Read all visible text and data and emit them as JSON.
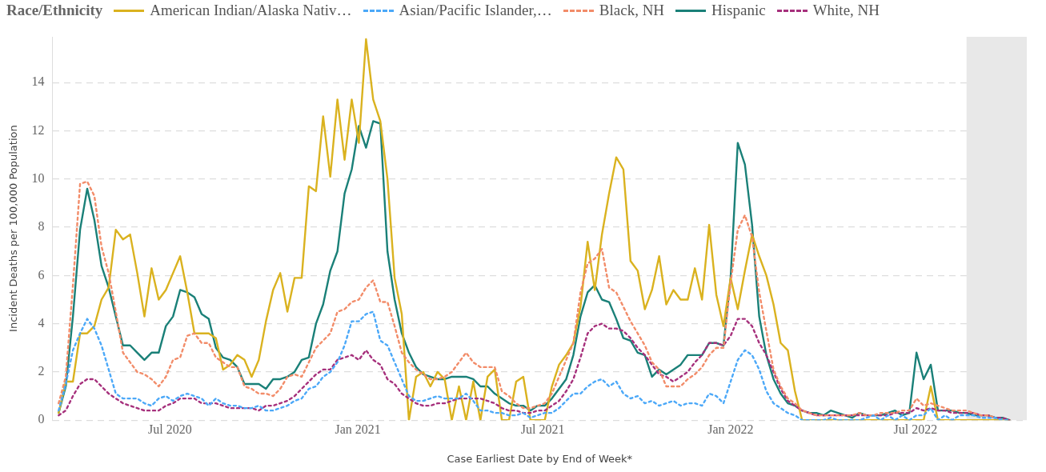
{
  "chart_data": {
    "type": "line",
    "xlabel": "Case Earliest Date by End of Week*",
    "ylabel": "Incident Deaths per 100,000 Population",
    "legend_title": "Race/Ethnicity",
    "legend": "top",
    "grid": "y",
    "marker": "none",
    "xlim": [
      "2020-03-08",
      "2022-10-18"
    ],
    "ylim": [
      0,
      15.9
    ],
    "yticks": [
      0,
      2,
      4,
      6,
      8,
      10,
      12,
      14
    ],
    "xticks": [
      {
        "value": "2020-07-01",
        "label": "Jul 2020"
      },
      {
        "value": "2021-01-01",
        "label": "Jan 2021"
      },
      {
        "value": "2021-07-01",
        "label": "Jul 2021"
      },
      {
        "value": "2022-01-01",
        "label": "Jan 2022"
      },
      {
        "value": "2022-07-01",
        "label": "Jul 2022"
      }
    ],
    "bands": [
      {
        "axis": "x",
        "from": "2022-08-20",
        "to": "2022-10-18",
        "color": "#e8e8e8"
      }
    ],
    "x": [
      "2020-03-14",
      "2020-03-21",
      "2020-03-28",
      "2020-04-04",
      "2020-04-11",
      "2020-04-18",
      "2020-04-25",
      "2020-05-02",
      "2020-05-09",
      "2020-05-16",
      "2020-05-23",
      "2020-05-30",
      "2020-06-06",
      "2020-06-13",
      "2020-06-20",
      "2020-06-27",
      "2020-07-04",
      "2020-07-11",
      "2020-07-18",
      "2020-07-25",
      "2020-08-01",
      "2020-08-08",
      "2020-08-15",
      "2020-08-22",
      "2020-08-29",
      "2020-09-05",
      "2020-09-12",
      "2020-09-19",
      "2020-09-26",
      "2020-10-03",
      "2020-10-10",
      "2020-10-17",
      "2020-10-24",
      "2020-10-31",
      "2020-11-07",
      "2020-11-14",
      "2020-11-21",
      "2020-11-28",
      "2020-12-05",
      "2020-12-12",
      "2020-12-19",
      "2020-12-26",
      "2021-01-02",
      "2021-01-09",
      "2021-01-16",
      "2021-01-23",
      "2021-01-30",
      "2021-02-06",
      "2021-02-13",
      "2021-02-20",
      "2021-02-27",
      "2021-03-06",
      "2021-03-13",
      "2021-03-20",
      "2021-03-27",
      "2021-04-03",
      "2021-04-10",
      "2021-04-17",
      "2021-04-24",
      "2021-05-01",
      "2021-05-08",
      "2021-05-15",
      "2021-05-22",
      "2021-05-29",
      "2021-06-05",
      "2021-06-12",
      "2021-06-19",
      "2021-06-26",
      "2021-07-03",
      "2021-07-10",
      "2021-07-17",
      "2021-07-24",
      "2021-07-31",
      "2021-08-07",
      "2021-08-14",
      "2021-08-21",
      "2021-08-28",
      "2021-09-04",
      "2021-09-11",
      "2021-09-18",
      "2021-09-25",
      "2021-10-02",
      "2021-10-09",
      "2021-10-16",
      "2021-10-23",
      "2021-10-30",
      "2021-11-06",
      "2021-11-13",
      "2021-11-20",
      "2021-11-27",
      "2021-12-04",
      "2021-12-11",
      "2021-12-18",
      "2021-12-25",
      "2022-01-01",
      "2022-01-08",
      "2022-01-15",
      "2022-01-22",
      "2022-01-29",
      "2022-02-05",
      "2022-02-12",
      "2022-02-19",
      "2022-02-26",
      "2022-03-05",
      "2022-03-12",
      "2022-03-19",
      "2022-03-26",
      "2022-04-02",
      "2022-04-09",
      "2022-04-16",
      "2022-04-23",
      "2022-04-30",
      "2022-05-07",
      "2022-05-14",
      "2022-05-21",
      "2022-05-28",
      "2022-06-04",
      "2022-06-11",
      "2022-06-18",
      "2022-06-25",
      "2022-07-02",
      "2022-07-09",
      "2022-07-16",
      "2022-07-23",
      "2022-07-30",
      "2022-08-06",
      "2022-08-13",
      "2022-08-20",
      "2022-08-27",
      "2022-09-03",
      "2022-09-10",
      "2022-09-17",
      "2022-09-24",
      "2022-10-01"
    ],
    "series": [
      {
        "name": "American Indian/Alaska Nativ…",
        "color": "#dab21f",
        "line_style": "solid",
        "values": [
          0.3,
          1.6,
          1.6,
          3.6,
          3.6,
          3.9,
          5.0,
          5.5,
          7.9,
          7.5,
          7.7,
          6.1,
          4.3,
          6.3,
          5.0,
          5.4,
          6.1,
          6.8,
          5.3,
          3.6,
          3.6,
          3.6,
          3.4,
          2.1,
          2.3,
          2.7,
          2.5,
          1.8,
          2.5,
          4.1,
          5.4,
          6.1,
          4.5,
          5.9,
          5.9,
          9.7,
          9.5,
          12.6,
          10.1,
          13.3,
          10.8,
          13.3,
          11.5,
          15.8,
          13.3,
          12.4,
          10.0,
          5.9,
          4.4,
          0.0,
          1.8,
          2.0,
          1.4,
          2.0,
          1.7,
          0,
          1.4,
          0,
          1.6,
          0,
          1.8,
          2.1,
          0,
          0,
          1.6,
          1.8,
          0,
          0,
          0,
          1.4,
          2.3,
          2.7,
          3.2,
          4.7,
          7.4,
          5.4,
          7.7,
          9.4,
          10.9,
          10.4,
          6.6,
          6.2,
          4.6,
          5.4,
          6.8,
          4.8,
          5.4,
          5.0,
          5.0,
          6.3,
          5.0,
          8.1,
          5.2,
          3.9,
          5.9,
          4.6,
          6.2,
          7.7,
          6.8,
          6.0,
          4.8,
          3.2,
          2.9,
          1.2,
          0,
          0,
          0,
          0,
          0,
          0,
          0,
          0,
          0,
          0,
          0,
          0,
          0,
          0,
          0,
          0,
          0,
          0,
          1.4,
          0,
          0,
          0,
          0,
          0,
          0,
          0,
          0,
          0,
          0,
          0
        ]
      },
      {
        "name": "Asian/Pacific Islander,…",
        "color": "#4ba8f8",
        "line_style": "dashed",
        "values": [
          0.4,
          1.5,
          2.9,
          3.6,
          4.2,
          3.8,
          3.1,
          2.1,
          1.1,
          0.9,
          0.9,
          0.9,
          0.7,
          0.6,
          0.9,
          1.0,
          0.8,
          1.0,
          1.1,
          1.0,
          0.9,
          0.6,
          0.9,
          0.7,
          0.6,
          0.6,
          0.5,
          0.5,
          0.6,
          0.4,
          0.4,
          0.5,
          0.6,
          0.8,
          0.9,
          1.3,
          1.4,
          1.8,
          2.0,
          2.4,
          3.1,
          4.1,
          4.1,
          4.4,
          4.5,
          3.3,
          3.1,
          2.4,
          1.7,
          1.0,
          0.8,
          0.8,
          0.9,
          1.0,
          0.9,
          0.9,
          0.9,
          1.1,
          0.8,
          0.4,
          0.4,
          0.3,
          0.3,
          0.2,
          0.2,
          0.3,
          0.1,
          0.2,
          0.3,
          0.3,
          0.5,
          0.8,
          1.1,
          1.1,
          1.4,
          1.6,
          1.7,
          1.4,
          1.6,
          1.1,
          0.9,
          1.0,
          0.7,
          0.8,
          0.6,
          0.7,
          0.8,
          0.6,
          0.7,
          0.7,
          0.6,
          1.1,
          1.0,
          0.7,
          1.6,
          2.5,
          2.9,
          2.7,
          2.1,
          1.2,
          0.7,
          0.5,
          0.3,
          0.2,
          0.0,
          0.0,
          0.0,
          0.0,
          0.1,
          0.0,
          0.0,
          0.0,
          0.0,
          0.1,
          0.2,
          0.0,
          0.2,
          0.0,
          0.2,
          0.0,
          0.2,
          0.2,
          0.5,
          0.0,
          0.2,
          0.0,
          0.2,
          0.2,
          0.2,
          0.1,
          0.1,
          0.1,
          0.0,
          0.0
        ]
      },
      {
        "name": "Black, NH",
        "color": "#f28c69",
        "line_style": "dashed",
        "values": [
          0.7,
          1.8,
          5.6,
          9.8,
          9.9,
          9.3,
          7.2,
          6.1,
          4.5,
          2.8,
          2.4,
          2.0,
          1.9,
          1.7,
          1.4,
          1.8,
          2.5,
          2.6,
          3.5,
          3.6,
          3.2,
          3.2,
          2.6,
          2.4,
          2.2,
          2.2,
          1.4,
          1.3,
          1.1,
          1.1,
          1.0,
          1.3,
          1.8,
          1.9,
          1.8,
          2.4,
          3.0,
          3.3,
          3.6,
          4.5,
          4.6,
          4.9,
          5.0,
          5.5,
          5.8,
          4.9,
          4.9,
          3.9,
          2.8,
          2.4,
          2.1,
          1.9,
          1.7,
          1.7,
          1.8,
          2.0,
          2.4,
          2.8,
          2.4,
          2.2,
          2.2,
          2.2,
          1.2,
          1.0,
          0.7,
          0.5,
          0.5,
          0.6,
          0.7,
          1.1,
          1.8,
          2.5,
          3.2,
          5.3,
          6.5,
          6.7,
          7.1,
          5.5,
          5.3,
          4.7,
          4.1,
          3.6,
          3.1,
          2.4,
          2.1,
          1.4,
          1.4,
          1.4,
          1.7,
          1.9,
          2.2,
          2.7,
          3.0,
          3.0,
          5.7,
          7.9,
          8.5,
          7.6,
          5.3,
          3.7,
          2.1,
          1.4,
          0.9,
          0.7,
          0.4,
          0.3,
          0.2,
          0.2,
          0.2,
          0.2,
          0.2,
          0.2,
          0.3,
          0.2,
          0.2,
          0.3,
          0.3,
          0.3,
          0.4,
          0.4,
          0.9,
          0.6,
          0.7,
          0.6,
          0.5,
          0.4,
          0.4,
          0.4,
          0.3,
          0.2,
          0.2,
          0.1,
          null,
          null
        ]
      },
      {
        "name": "Hispanic",
        "color": "#1a8078",
        "line_style": "solid",
        "values": [
          0.3,
          1.4,
          4.3,
          7.9,
          9.6,
          8.3,
          6.4,
          5.5,
          4.3,
          3.1,
          3.1,
          2.8,
          2.5,
          2.8,
          2.8,
          3.9,
          4.3,
          5.4,
          5.3,
          5.1,
          4.4,
          4.2,
          3.0,
          2.6,
          2.5,
          2.2,
          1.5,
          1.5,
          1.5,
          1.3,
          1.7,
          1.7,
          1.8,
          2.0,
          2.5,
          2.6,
          4.0,
          4.8,
          6.2,
          7.0,
          9.4,
          10.4,
          12.2,
          11.3,
          12.4,
          12.3,
          7.0,
          5.0,
          3.6,
          2.8,
          2.2,
          1.9,
          1.8,
          1.7,
          1.7,
          1.8,
          1.8,
          1.8,
          1.7,
          1.4,
          1.4,
          1.1,
          0.9,
          0.7,
          0.6,
          0.6,
          0.4,
          0.6,
          0.6,
          0.9,
          1.3,
          1.7,
          2.7,
          4.3,
          5.3,
          5.6,
          5.0,
          4.9,
          4.2,
          3.4,
          3.3,
          2.8,
          2.7,
          1.8,
          2.1,
          1.9,
          2.1,
          2.3,
          2.7,
          2.7,
          2.7,
          3.2,
          3.2,
          3.1,
          5.9,
          11.5,
          10.6,
          8.1,
          4.3,
          2.7,
          1.7,
          1.1,
          0.7,
          0.6,
          0.4,
          0.3,
          0.3,
          0.2,
          0.4,
          0.3,
          0.2,
          0.1,
          0.3,
          0.2,
          0.2,
          0.2,
          0.3,
          0.4,
          0.2,
          0.3,
          2.8,
          1.7,
          2.3,
          0.4,
          0.4,
          0.4,
          0.3,
          0.3,
          0.2,
          0.2,
          0.2,
          0.1,
          0.1,
          0.0
        ]
      },
      {
        "name": "White, NH",
        "color": "#a6307c",
        "line_style": "dashed",
        "values": [
          0.2,
          0.4,
          1.0,
          1.5,
          1.7,
          1.7,
          1.4,
          1.1,
          0.9,
          0.7,
          0.6,
          0.5,
          0.4,
          0.4,
          0.4,
          0.6,
          0.7,
          0.9,
          0.9,
          0.9,
          0.7,
          0.7,
          0.7,
          0.6,
          0.5,
          0.5,
          0.5,
          0.5,
          0.4,
          0.6,
          0.6,
          0.7,
          0.8,
          1.0,
          1.3,
          1.6,
          1.9,
          2.1,
          2.1,
          2.5,
          2.6,
          2.7,
          2.5,
          2.9,
          2.5,
          2.3,
          1.7,
          1.5,
          1.1,
          0.9,
          0.7,
          0.6,
          0.6,
          0.7,
          0.7,
          0.8,
          0.9,
          0.9,
          0.9,
          0.9,
          0.8,
          0.7,
          0.5,
          0.4,
          0.4,
          0.3,
          0.3,
          0.4,
          0.4,
          0.6,
          0.8,
          1.2,
          1.7,
          2.6,
          3.6,
          3.9,
          4.0,
          3.8,
          3.8,
          3.7,
          3.4,
          3.0,
          2.7,
          2.3,
          1.9,
          1.8,
          1.6,
          1.8,
          2.0,
          2.4,
          2.7,
          3.2,
          3.2,
          3.1,
          3.5,
          4.2,
          4.2,
          3.9,
          3.2,
          2.7,
          2.0,
          1.3,
          0.8,
          0.6,
          0.4,
          0.3,
          0.2,
          0.2,
          0.2,
          0.2,
          0.2,
          0.2,
          0.2,
          0.2,
          0.2,
          0.2,
          0.2,
          0.3,
          0.3,
          0.3,
          0.5,
          0.4,
          0.5,
          0.4,
          0.4,
          0.3,
          0.3,
          0.3,
          0.3,
          0.2,
          0.2,
          0.1,
          0.1,
          0.0
        ]
      }
    ]
  }
}
